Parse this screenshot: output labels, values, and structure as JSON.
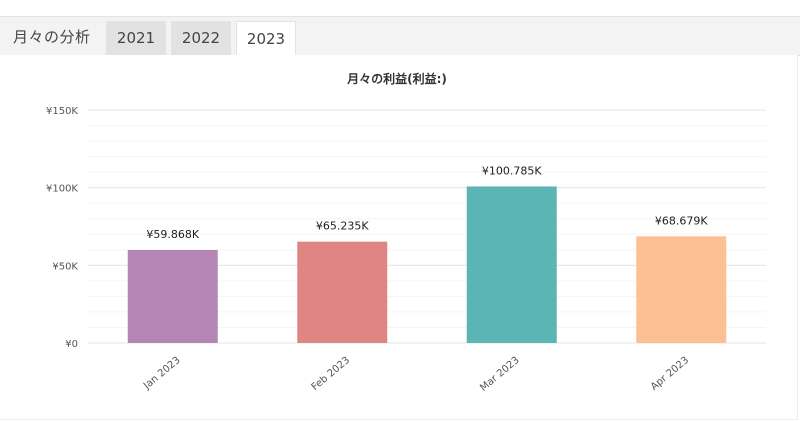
{
  "header": {
    "section_title": "月々の分析",
    "tabs": [
      {
        "label": "2021",
        "active": false
      },
      {
        "label": "2022",
        "active": false
      },
      {
        "label": "2023",
        "active": true
      }
    ]
  },
  "chart_data": {
    "type": "bar",
    "title": "月々の利益(利益:)",
    "xlabel": "",
    "ylabel": "",
    "categories": [
      "Jan 2023",
      "Feb 2023",
      "Mar 2023",
      "Apr 2023"
    ],
    "values": [
      59868,
      65235,
      100785,
      68679
    ],
    "data_labels": [
      "¥59.868K",
      "¥65.235K",
      "¥100.785K",
      "¥68.679K"
    ],
    "colors": [
      "#b386b5",
      "#e08682",
      "#5ab5b4",
      "#fdbf94"
    ],
    "ylim": [
      0,
      150000
    ],
    "y_ticks": [
      0,
      50000,
      100000,
      150000
    ],
    "y_tick_labels": [
      "¥0",
      "¥50K",
      "¥100K",
      "¥150K"
    ],
    "grid": true,
    "legend": "none"
  }
}
